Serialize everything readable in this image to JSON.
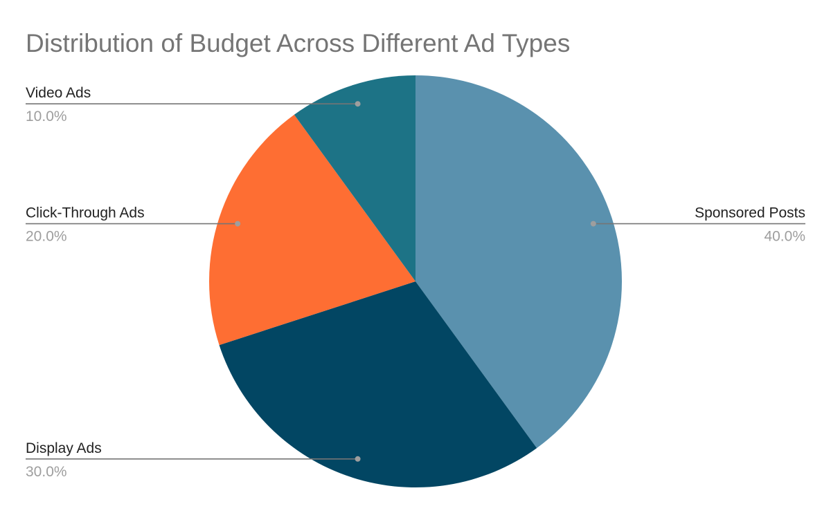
{
  "chart_data": {
    "type": "pie",
    "title": "Distribution of Budget Across Different Ad Types",
    "slices": [
      {
        "label": "Sponsored Posts",
        "value": 40.0,
        "display": "40.0%",
        "color": "#5a91ae"
      },
      {
        "label": "Display Ads",
        "value": 30.0,
        "display": "30.0%",
        "color": "#024663"
      },
      {
        "label": "Click-Through Ads",
        "value": 20.0,
        "display": "20.0%",
        "color": "#fe6e33"
      },
      {
        "label": "Video Ads",
        "value": 10.0,
        "display": "10.0%",
        "color": "#1d7386"
      }
    ],
    "start_angle_deg": 0,
    "direction": "clockwise",
    "legend": "none",
    "label_placement": "outside-with-leader-lines"
  }
}
